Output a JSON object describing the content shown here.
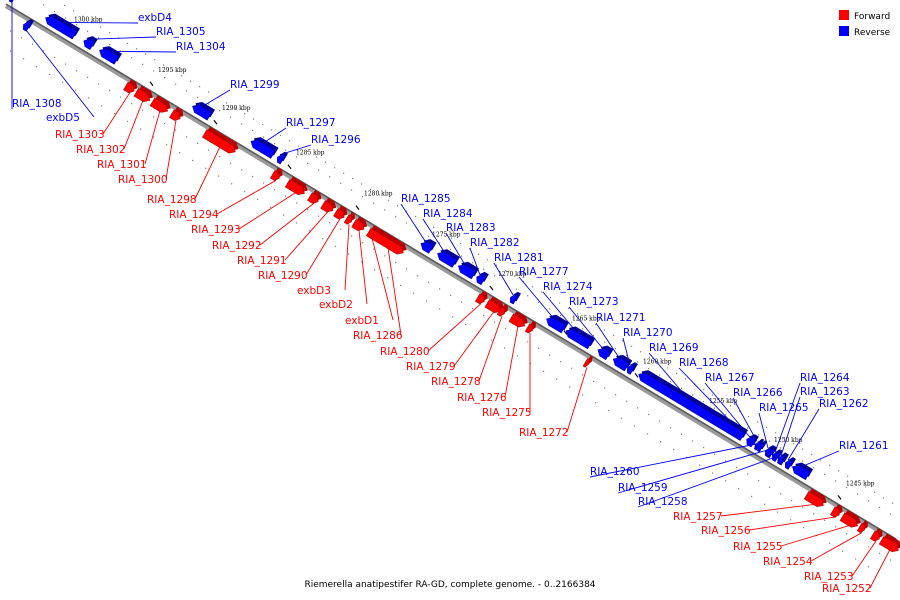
{
  "caption": "Riemerella anatipestifer RA-GD, complete genome. - 0..2166384",
  "legend": {
    "forward_label": "Forward",
    "reverse_label": "Reverse",
    "forward_color": "#ff0000",
    "reverse_color": "#0000ff"
  },
  "scale_labels": [
    "1300 kbp",
    "1295 kbp",
    "1290 kbp",
    "1285 kbp",
    "1280 kbp",
    "1275 kbp",
    "1270 kbp",
    "1265 kbp",
    "1260 kbp",
    "1255 kbp",
    "1250 kbp",
    "1245 kbp"
  ],
  "genes": [
    {
      "name": "RIA_1308",
      "strand": "reverse"
    },
    {
      "name": "exbD5",
      "strand": "reverse"
    },
    {
      "name": "exbD4",
      "strand": "reverse"
    },
    {
      "name": "RIA_1305",
      "strand": "reverse"
    },
    {
      "name": "RIA_1304",
      "strand": "reverse"
    },
    {
      "name": "RIA_1303",
      "strand": "forward"
    },
    {
      "name": "RIA_1302",
      "strand": "forward"
    },
    {
      "name": "RIA_1301",
      "strand": "forward"
    },
    {
      "name": "RIA_1300",
      "strand": "forward"
    },
    {
      "name": "RIA_1299",
      "strand": "reverse"
    },
    {
      "name": "RIA_1298",
      "strand": "forward"
    },
    {
      "name": "RIA_1297",
      "strand": "reverse"
    },
    {
      "name": "RIA_1296",
      "strand": "reverse"
    },
    {
      "name": "RIA_1294",
      "strand": "forward"
    },
    {
      "name": "RIA_1293",
      "strand": "forward"
    },
    {
      "name": "RIA_1292",
      "strand": "forward"
    },
    {
      "name": "RIA_1291",
      "strand": "forward"
    },
    {
      "name": "RIA_1290",
      "strand": "forward"
    },
    {
      "name": "exbD3",
      "strand": "forward"
    },
    {
      "name": "exbD2",
      "strand": "forward"
    },
    {
      "name": "exbD1",
      "strand": "forward"
    },
    {
      "name": "RIA_1286",
      "strand": "forward"
    },
    {
      "name": "RIA_1285",
      "strand": "reverse"
    },
    {
      "name": "RIA_1284",
      "strand": "reverse"
    },
    {
      "name": "RIA_1283",
      "strand": "reverse"
    },
    {
      "name": "RIA_1282",
      "strand": "reverse"
    },
    {
      "name": "RIA_1281",
      "strand": "reverse"
    },
    {
      "name": "RIA_1280",
      "strand": "forward"
    },
    {
      "name": "RIA_1279",
      "strand": "forward"
    },
    {
      "name": "RIA_1278",
      "strand": "forward"
    },
    {
      "name": "RIA_1277",
      "strand": "reverse"
    },
    {
      "name": "RIA_1276",
      "strand": "forward"
    },
    {
      "name": "RIA_1275",
      "strand": "forward"
    },
    {
      "name": "RIA_1274",
      "strand": "reverse"
    },
    {
      "name": "RIA_1273",
      "strand": "reverse"
    },
    {
      "name": "RIA_1272",
      "strand": "forward"
    },
    {
      "name": "RIA_1271",
      "strand": "reverse"
    },
    {
      "name": "RIA_1270",
      "strand": "reverse"
    },
    {
      "name": "RIA_1269",
      "strand": "reverse"
    },
    {
      "name": "RIA_1268",
      "strand": "reverse"
    },
    {
      "name": "RIA_1267",
      "strand": "reverse"
    },
    {
      "name": "RIA_1266",
      "strand": "reverse"
    },
    {
      "name": "RIA_1265",
      "strand": "reverse"
    },
    {
      "name": "RIA_1264",
      "strand": "reverse"
    },
    {
      "name": "RIA_1263",
      "strand": "reverse"
    },
    {
      "name": "RIA_1262",
      "strand": "reverse"
    },
    {
      "name": "RIA_1261",
      "strand": "reverse"
    },
    {
      "name": "RIA_1260",
      "strand": "reverse"
    },
    {
      "name": "RIA_1259",
      "strand": "reverse"
    },
    {
      "name": "RIA_1258",
      "strand": "reverse"
    },
    {
      "name": "RIA_1257",
      "strand": "forward"
    },
    {
      "name": "RIA_1256",
      "strand": "forward"
    },
    {
      "name": "RIA_1255",
      "strand": "forward"
    },
    {
      "name": "RIA_1254",
      "strand": "forward"
    },
    {
      "name": "RIA_1253",
      "strand": "forward"
    },
    {
      "name": "RIA_1252",
      "strand": "forward"
    }
  ]
}
